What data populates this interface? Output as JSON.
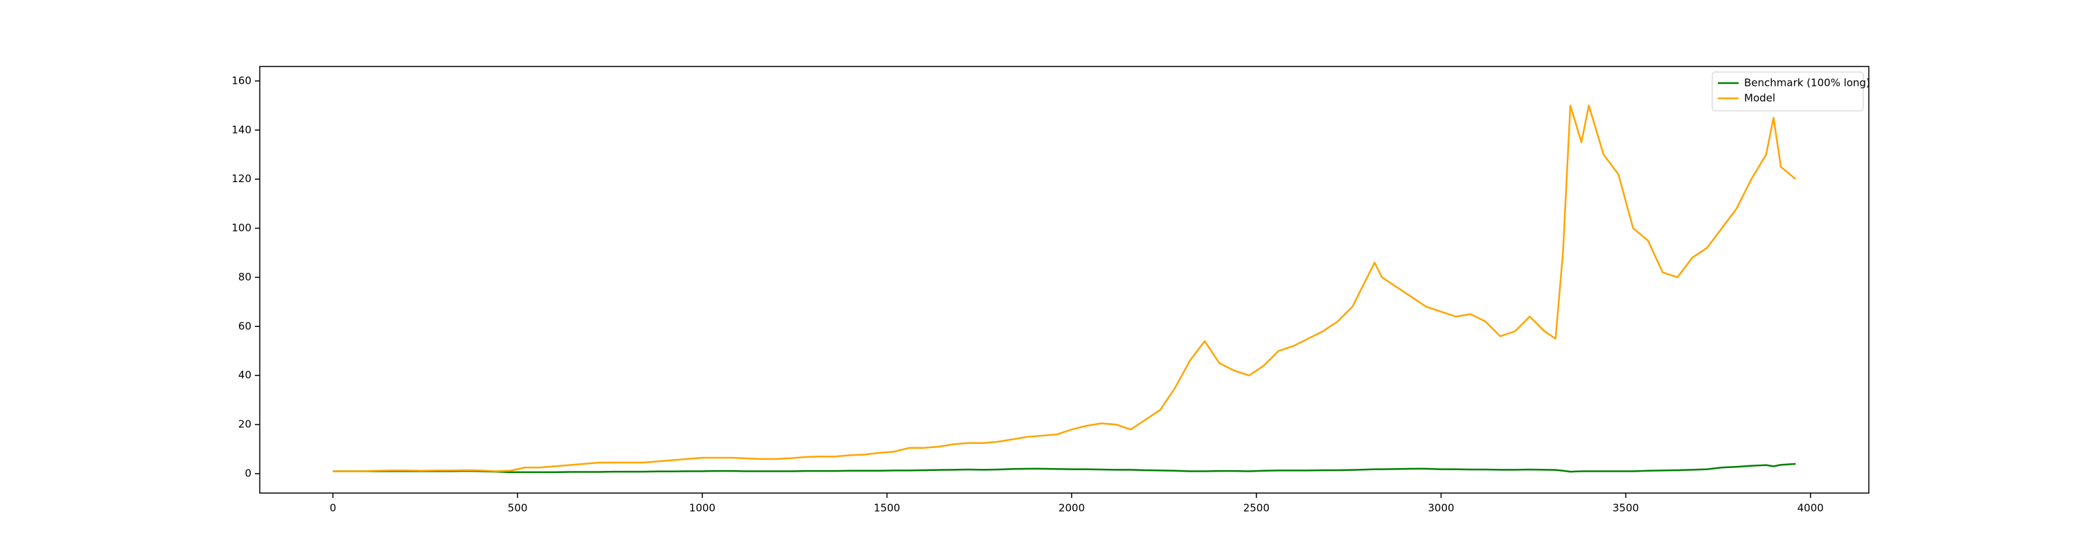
{
  "chart_data": {
    "type": "line",
    "x": [
      0,
      40,
      80,
      120,
      160,
      200,
      240,
      280,
      320,
      360,
      400,
      440,
      480,
      520,
      560,
      600,
      640,
      680,
      720,
      760,
      800,
      840,
      880,
      920,
      960,
      1000,
      1040,
      1080,
      1120,
      1160,
      1200,
      1240,
      1280,
      1320,
      1360,
      1400,
      1440,
      1480,
      1520,
      1560,
      1600,
      1640,
      1680,
      1720,
      1760,
      1800,
      1840,
      1880,
      1920,
      1960,
      2000,
      2040,
      2080,
      2120,
      2160,
      2200,
      2240,
      2280,
      2320,
      2340,
      2360,
      2400,
      2440,
      2480,
      2520,
      2560,
      2600,
      2640,
      2680,
      2720,
      2760,
      2800,
      2820,
      2840,
      2880,
      2920,
      2960,
      3000,
      3040,
      3080,
      3120,
      3160,
      3200,
      3240,
      3280,
      3310,
      3330,
      3350,
      3380,
      3400,
      3440,
      3480,
      3520,
      3560,
      3600,
      3640,
      3680,
      3720,
      3760,
      3800,
      3840,
      3880,
      3900,
      3920,
      3960
    ],
    "series": [
      {
        "name": "Benchmark (100% long)",
        "color": "#008000",
        "values": [
          1,
          1,
          1,
          1,
          1,
          1,
          1,
          1,
          1,
          1.1,
          1,
          0.8,
          0.6,
          0.6,
          0.6,
          0.6,
          0.7,
          0.7,
          0.7,
          0.8,
          0.8,
          0.8,
          0.9,
          0.9,
          1,
          1,
          1.1,
          1.1,
          1,
          1,
          1,
          1,
          1.1,
          1.1,
          1.1,
          1.2,
          1.2,
          1.2,
          1.3,
          1.3,
          1.4,
          1.5,
          1.6,
          1.7,
          1.6,
          1.7,
          1.9,
          2,
          2,
          1.9,
          1.8,
          1.8,
          1.7,
          1.6,
          1.6,
          1.4,
          1.3,
          1.2,
          1,
          1,
          1,
          1.1,
          1.1,
          1,
          1.2,
          1.3,
          1.3,
          1.3,
          1.4,
          1.4,
          1.5,
          1.7,
          1.8,
          1.8,
          1.9,
          2,
          2,
          1.8,
          1.8,
          1.7,
          1.7,
          1.6,
          1.6,
          1.7,
          1.6,
          1.5,
          1.2,
          0.8,
          1,
          1,
          1,
          1,
          1,
          1.2,
          1.3,
          1.4,
          1.6,
          1.8,
          2.5,
          2.8,
          3.2,
          3.5,
          3,
          3.6,
          4
        ]
      },
      {
        "name": "Model",
        "color": "#ffa500",
        "values": [
          1,
          1,
          1,
          1.2,
          1.3,
          1.3,
          1.2,
          1.3,
          1.3,
          1.4,
          1.3,
          1.0,
          1.2,
          2.5,
          2.5,
          3,
          3.5,
          4,
          4.5,
          4.5,
          4.5,
          4.5,
          5,
          5.5,
          6,
          6.5,
          6.5,
          6.5,
          6.2,
          6,
          6,
          6.3,
          6.8,
          7,
          7,
          7.5,
          7.8,
          8.5,
          9,
          10.5,
          10.5,
          11,
          12,
          12.5,
          12.5,
          13,
          14,
          15,
          15.5,
          16,
          18,
          19.5,
          20.5,
          20,
          18,
          22,
          26,
          35,
          46,
          50,
          54,
          45,
          42,
          40,
          44,
          50,
          52,
          55,
          58,
          62,
          68,
          80,
          86,
          80,
          76,
          72,
          68,
          66,
          64,
          65,
          62,
          56,
          58,
          64,
          58,
          55,
          90,
          150,
          135,
          150,
          130,
          122,
          100,
          95,
          82,
          80,
          88,
          92,
          100,
          108,
          120,
          130,
          145,
          125,
          120
        ]
      }
    ],
    "xlim": [
      -198,
      4158
    ],
    "ylim": [
      -7.9,
      165.9
    ],
    "xticks": [
      0,
      500,
      1000,
      1500,
      2000,
      2500,
      3000,
      3500,
      4000
    ],
    "yticks": [
      0,
      20,
      40,
      60,
      80,
      100,
      120,
      140,
      160
    ],
    "legend": "upper right"
  }
}
